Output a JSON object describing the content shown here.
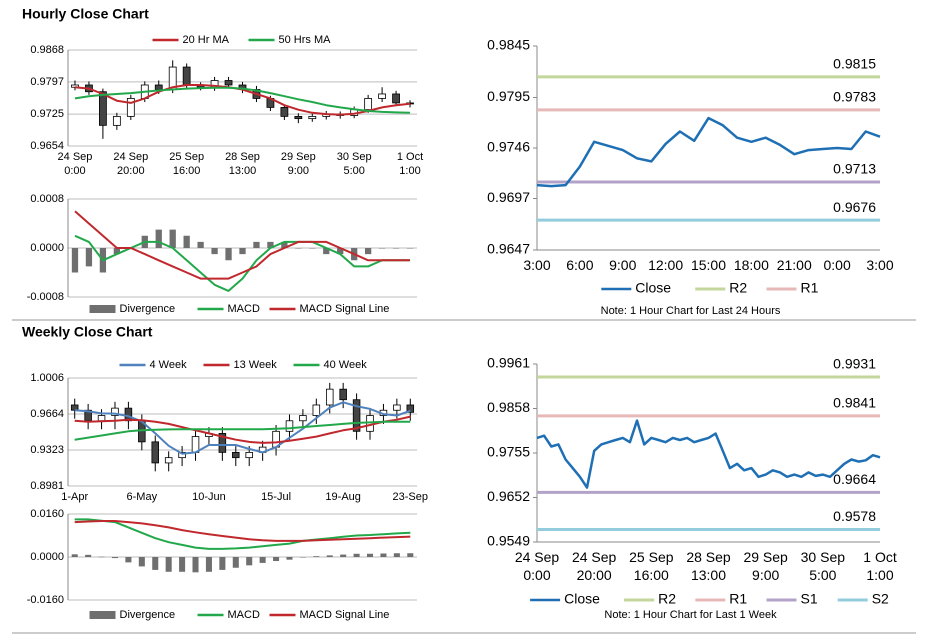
{
  "headings": [
    "Hourly Close Chart",
    "Weekly Close Chart"
  ],
  "chart_data": [
    {
      "type": "candlestick",
      "categories": [
        "24 Sep\n0:00",
        null,
        null,
        null,
        "24 Sep\n20:00",
        null,
        null,
        null,
        "25 Sep\n16:00",
        null,
        null,
        null,
        "28 Sep\n13:00",
        null,
        null,
        null,
        "29 Sep\n9:00",
        null,
        null,
        null,
        "30 Sep\n5:00",
        null,
        null,
        null,
        "1 Oct\n1:00"
      ],
      "open": [
        0.9785,
        0.979,
        0.9775,
        0.97,
        0.972,
        0.976,
        0.979,
        0.978,
        0.983,
        0.979,
        0.9785,
        0.98,
        0.979,
        0.978,
        0.976,
        0.974,
        0.972,
        0.9715,
        0.972,
        0.9725,
        0.9722,
        0.9735,
        0.976,
        0.977,
        0.975
      ],
      "high": [
        0.98,
        0.9798,
        0.9782,
        0.9728,
        0.9768,
        0.9798,
        0.98,
        0.9845,
        0.9838,
        0.9796,
        0.9808,
        0.9808,
        0.9797,
        0.9788,
        0.9766,
        0.9746,
        0.9727,
        0.9726,
        0.9732,
        0.9731,
        0.9742,
        0.9768,
        0.9785,
        0.9777,
        0.9756
      ],
      "low": [
        0.9778,
        0.9768,
        0.967,
        0.969,
        0.9712,
        0.9752,
        0.977,
        0.9772,
        0.9782,
        0.9778,
        0.9777,
        0.9782,
        0.9772,
        0.9752,
        0.9732,
        0.9712,
        0.9705,
        0.9708,
        0.9713,
        0.9715,
        0.9716,
        0.9728,
        0.9752,
        0.9743,
        0.974
      ],
      "close": [
        0.979,
        0.9775,
        0.97,
        0.972,
        0.976,
        0.979,
        0.978,
        0.983,
        0.979,
        0.9785,
        0.98,
        0.979,
        0.978,
        0.976,
        0.974,
        0.972,
        0.9715,
        0.972,
        0.9725,
        0.9722,
        0.9735,
        0.976,
        0.977,
        0.975,
        0.9748
      ],
      "series": [
        {
          "name": "20 Hr MA",
          "color": "#c0282d",
          "values": [
            0.9785,
            0.9782,
            0.977,
            0.9755,
            0.975,
            0.976,
            0.9775,
            0.9785,
            0.979,
            0.979,
            0.9788,
            0.9785,
            0.978,
            0.977,
            0.976,
            0.9745,
            0.9735,
            0.9728,
            0.9725,
            0.9724,
            0.9726,
            0.9732,
            0.974,
            0.9745,
            0.9748
          ]
        },
        {
          "name": "50 Hrs MA",
          "color": "#22a84a",
          "values": [
            0.976,
            0.9765,
            0.9768,
            0.977,
            0.9772,
            0.9775,
            0.9778,
            0.978,
            0.9782,
            0.9783,
            0.9784,
            0.9784,
            0.9782,
            0.9778,
            0.9772,
            0.9765,
            0.9758,
            0.9752,
            0.9745,
            0.974,
            0.9736,
            0.9732,
            0.973,
            0.9729,
            0.9728
          ]
        }
      ],
      "ylim": [
        0.9654,
        0.9868
      ],
      "yticks": [
        0.9654,
        0.9725,
        0.9797,
        0.9868
      ],
      "grid": true,
      "legend": "top"
    },
    {
      "type": "macd",
      "series": [
        {
          "name": "Divergence",
          "color": "#6f6f6f",
          "kind": "bar",
          "values": [
            -0.0004,
            -0.0003,
            -0.0004,
            -0.0001,
            0,
            0.0002,
            0.0003,
            0.0003,
            0.0002,
            0.0001,
            -0.0001,
            -0.0002,
            -0.0001,
            0.0001,
            0.0001,
            0.0001,
            0,
            0,
            -0.0001,
            -0.0001,
            -0.0002,
            -0.0001,
            0,
            0,
            0
          ]
        },
        {
          "name": "MACD",
          "color": "#22a84a",
          "kind": "line",
          "values": [
            0.0002,
            0.0001,
            -0.0002,
            -0.0001,
            0,
            0.0001,
            0.0001,
            0,
            -0.0002,
            -0.0004,
            -0.0006,
            -0.0007,
            -0.0005,
            -0.0002,
            0,
            0.0001,
            0.0001,
            0.0001,
            0,
            -0.0001,
            -0.0003,
            -0.0003,
            -0.0002,
            -0.0002,
            -0.0002
          ]
        },
        {
          "name": "MACD Signal Line",
          "color": "#c0282d",
          "kind": "line",
          "values": [
            0.0006,
            0.0004,
            0.0002,
            0,
            0,
            -0.0001,
            -0.0002,
            -0.0003,
            -0.0004,
            -0.0005,
            -0.0005,
            -0.0005,
            -0.0004,
            -0.0003,
            -0.0001,
            0,
            0.0001,
            0.0001,
            0.0001,
            0,
            -0.0001,
            -0.0002,
            -0.0002,
            -0.0002,
            -0.0002
          ]
        }
      ],
      "ylim": [
        -0.0008,
        0.0008
      ],
      "yticks": [
        {
          "value": -0.0008,
          "label": "-0.0008"
        },
        {
          "value": 0,
          "label": "0.0000"
        },
        {
          "value": 0.0008,
          "label": "0.0008"
        }
      ],
      "grid": true,
      "legend": "bottom"
    },
    {
      "type": "line",
      "categories": [
        "3:00",
        null,
        null,
        "6:00",
        null,
        null,
        "9:00",
        null,
        null,
        "12:00",
        null,
        null,
        "15:00",
        null,
        null,
        "18:00",
        null,
        null,
        "21:00",
        null,
        null,
        "0:00",
        null,
        null,
        "3:00"
      ],
      "series": [
        {
          "name": "Close",
          "color": "#1f6fb5",
          "values": [
            0.971,
            0.9709,
            0.971,
            0.9728,
            0.9752,
            0.9748,
            0.9744,
            0.9736,
            0.9733,
            0.975,
            0.9762,
            0.9753,
            0.9775,
            0.9768,
            0.9756,
            0.9752,
            0.9756,
            0.9749,
            0.974,
            0.9744,
            0.9745,
            0.9746,
            0.9745,
            0.9762,
            0.9757
          ]
        }
      ],
      "levels": [
        {
          "name": "R2",
          "value": 0.9815,
          "color": "#c3d69b"
        },
        {
          "name": "R1",
          "value": 0.9783,
          "color": "#e6b9b8"
        },
        {
          "value": 0.9713,
          "color": "#b3a2c7"
        },
        {
          "value": 0.9676,
          "color": "#93cddd"
        }
      ],
      "ylim": [
        0.9647,
        0.9845
      ],
      "yticks": [
        0.9647,
        0.9697,
        0.9746,
        0.9795,
        0.9845
      ],
      "grid": false,
      "legend": "bottom",
      "note": "Note: 1 Hour Chart for Last 24 Hours"
    },
    {
      "type": "candlestick",
      "categories": [
        "1-Apr",
        null,
        null,
        null,
        null,
        "6-May",
        null,
        null,
        null,
        null,
        "10-Jun",
        null,
        null,
        null,
        null,
        "15-Jul",
        null,
        null,
        null,
        null,
        "19-Aug",
        null,
        null,
        null,
        null,
        "23-Sep"
      ],
      "open": [
        0.975,
        0.97,
        0.96,
        0.965,
        0.972,
        0.96,
        0.94,
        0.92,
        0.925,
        0.93,
        0.945,
        0.948,
        0.93,
        0.925,
        0.93,
        0.935,
        0.95,
        0.96,
        0.965,
        0.975,
        0.99,
        0.98,
        0.95,
        0.965,
        0.97,
        0.975
      ],
      "high": [
        0.981,
        0.976,
        0.971,
        0.978,
        0.978,
        0.966,
        0.946,
        0.931,
        0.936,
        0.951,
        0.954,
        0.954,
        0.936,
        0.936,
        0.941,
        0.956,
        0.966,
        0.971,
        0.981,
        0.996,
        0.996,
        0.986,
        0.971,
        0.976,
        0.981,
        0.981
      ],
      "low": [
        0.962,
        0.952,
        0.952,
        0.952,
        0.952,
        0.932,
        0.912,
        0.912,
        0.917,
        0.922,
        0.937,
        0.922,
        0.917,
        0.917,
        0.922,
        0.927,
        0.942,
        0.952,
        0.957,
        0.967,
        0.972,
        0.942,
        0.942,
        0.957,
        0.962,
        0.96
      ],
      "close": [
        0.97,
        0.96,
        0.965,
        0.972,
        0.96,
        0.94,
        0.92,
        0.925,
        0.93,
        0.945,
        0.948,
        0.93,
        0.925,
        0.93,
        0.935,
        0.95,
        0.96,
        0.965,
        0.975,
        0.99,
        0.98,
        0.95,
        0.965,
        0.97,
        0.975,
        0.968
      ],
      "series": [
        {
          "name": "4 Week",
          "color": "#4f81bd",
          "values": [
            0.97,
            0.969,
            0.967,
            0.9668,
            0.9643,
            0.9593,
            0.948,
            0.9363,
            0.9288,
            0.93,
            0.937,
            0.937,
            0.937,
            0.9333,
            0.93,
            0.935,
            0.9438,
            0.9525,
            0.9625,
            0.9725,
            0.9775,
            0.9738,
            0.9713,
            0.9663,
            0.965,
            0.9695
          ]
        },
        {
          "name": "13 Week",
          "color": "#c0282d",
          "values": [
            0.96,
            0.959,
            0.9595,
            0.96,
            0.961,
            0.9605,
            0.959,
            0.957,
            0.954,
            0.951,
            0.948,
            0.945,
            0.942,
            0.94,
            0.939,
            0.9395,
            0.941,
            0.943,
            0.945,
            0.948,
            0.951,
            0.953,
            0.956,
            0.959,
            0.961,
            0.964
          ]
        },
        {
          "name": "40 Week",
          "color": "#22a84a",
          "values": [
            0.942,
            0.944,
            0.946,
            0.948,
            0.95,
            0.951,
            0.9515,
            0.9518,
            0.952,
            0.952,
            0.952,
            0.952,
            0.952,
            0.952,
            0.952,
            0.9525,
            0.953,
            0.954,
            0.955,
            0.956,
            0.957,
            0.958,
            0.9585,
            0.959,
            0.959,
            0.959
          ]
        }
      ],
      "ylim": [
        0.8981,
        1.0006
      ],
      "yticks": [
        0.8981,
        0.9323,
        0.9664,
        1.0006
      ],
      "grid": true,
      "legend": "top"
    },
    {
      "type": "macd",
      "series": [
        {
          "name": "Divergence",
          "color": "#6f6f6f",
          "kind": "bar",
          "values": [
            0.001,
            0.0008,
            0.0001,
            -0.0004,
            -0.002,
            -0.0035,
            -0.0048,
            -0.0055,
            -0.0055,
            -0.0057,
            -0.0055,
            -0.0048,
            -0.004,
            -0.0031,
            -0.0022,
            -0.0015,
            -0.001,
            0,
            0.0003,
            0.0006,
            0.0009,
            0.0012,
            0.0012,
            0.0013,
            0.0014,
            0.0014
          ]
        },
        {
          "name": "MACD",
          "color": "#22a84a",
          "kind": "line",
          "values": [
            0.014,
            0.014,
            0.0135,
            0.013,
            0.011,
            0.009,
            0.007,
            0.0055,
            0.0045,
            0.0035,
            0.003,
            0.003,
            0.0032,
            0.0035,
            0.004,
            0.0045,
            0.005,
            0.006,
            0.0065,
            0.007,
            0.0075,
            0.008,
            0.0082,
            0.0085,
            0.0088,
            0.009
          ]
        },
        {
          "name": "MACD Signal Line",
          "color": "#c0282d",
          "kind": "line",
          "values": [
            0.013,
            0.0132,
            0.0134,
            0.0134,
            0.013,
            0.0125,
            0.0118,
            0.011,
            0.01,
            0.0092,
            0.0085,
            0.0078,
            0.0072,
            0.0066,
            0.0062,
            0.006,
            0.006,
            0.006,
            0.0062,
            0.0064,
            0.0066,
            0.0068,
            0.007,
            0.0072,
            0.0074,
            0.0076
          ]
        }
      ],
      "ylim": [
        -0.016,
        0.016
      ],
      "yticks": [
        {
          "value": -0.016,
          "label": "-0.0160"
        },
        {
          "value": 0,
          "label": "0.0000"
        },
        {
          "value": 0.016,
          "label": "0.0160"
        }
      ],
      "grid": true,
      "legend": "bottom"
    },
    {
      "type": "line",
      "categories": [
        "24 Sep\n0:00",
        null,
        null,
        null,
        null,
        null,
        null,
        null,
        "24 Sep\n20:00",
        null,
        null,
        null,
        null,
        null,
        null,
        null,
        "25 Sep\n16:00",
        null,
        null,
        null,
        null,
        null,
        null,
        null,
        "28 Sep\n13:00",
        null,
        null,
        null,
        null,
        null,
        null,
        null,
        "29 Sep\n9:00",
        null,
        null,
        null,
        null,
        null,
        null,
        null,
        "30 Sep\n5:00",
        null,
        null,
        null,
        null,
        null,
        null,
        null,
        "1 Oct\n1:00"
      ],
      "series": [
        {
          "name": "Close",
          "color": "#1f6fb5",
          "values": [
            0.979,
            0.9795,
            0.977,
            0.9775,
            0.974,
            0.972,
            0.97,
            0.9675,
            0.976,
            0.9775,
            0.978,
            0.9785,
            0.979,
            0.978,
            0.983,
            0.9775,
            0.979,
            0.9785,
            0.978,
            0.979,
            0.9785,
            0.979,
            0.978,
            0.9785,
            0.979,
            0.98,
            0.976,
            0.972,
            0.973,
            0.9715,
            0.972,
            0.97,
            0.9705,
            0.9715,
            0.971,
            0.97,
            0.9705,
            0.97,
            0.971,
            0.9702,
            0.9705,
            0.97,
            0.9715,
            0.973,
            0.974,
            0.9735,
            0.9738,
            0.975,
            0.9745
          ]
        }
      ],
      "levels": [
        {
          "name": "R2",
          "value": 0.9931,
          "color": "#c3d69b"
        },
        {
          "name": "R1",
          "value": 0.9841,
          "color": "#e6b9b8"
        },
        {
          "name": "S1",
          "value": 0.9664,
          "color": "#b3a2c7"
        },
        {
          "name": "S2",
          "value": 0.9578,
          "color": "#93cddd"
        }
      ],
      "ylim": [
        0.9549,
        0.9961
      ],
      "yticks": [
        0.9549,
        0.9652,
        0.9755,
        0.9858,
        0.9961
      ],
      "grid": false,
      "legend": "bottom",
      "note": "Note: 1 Hour Chart for Last 1 Week"
    }
  ]
}
